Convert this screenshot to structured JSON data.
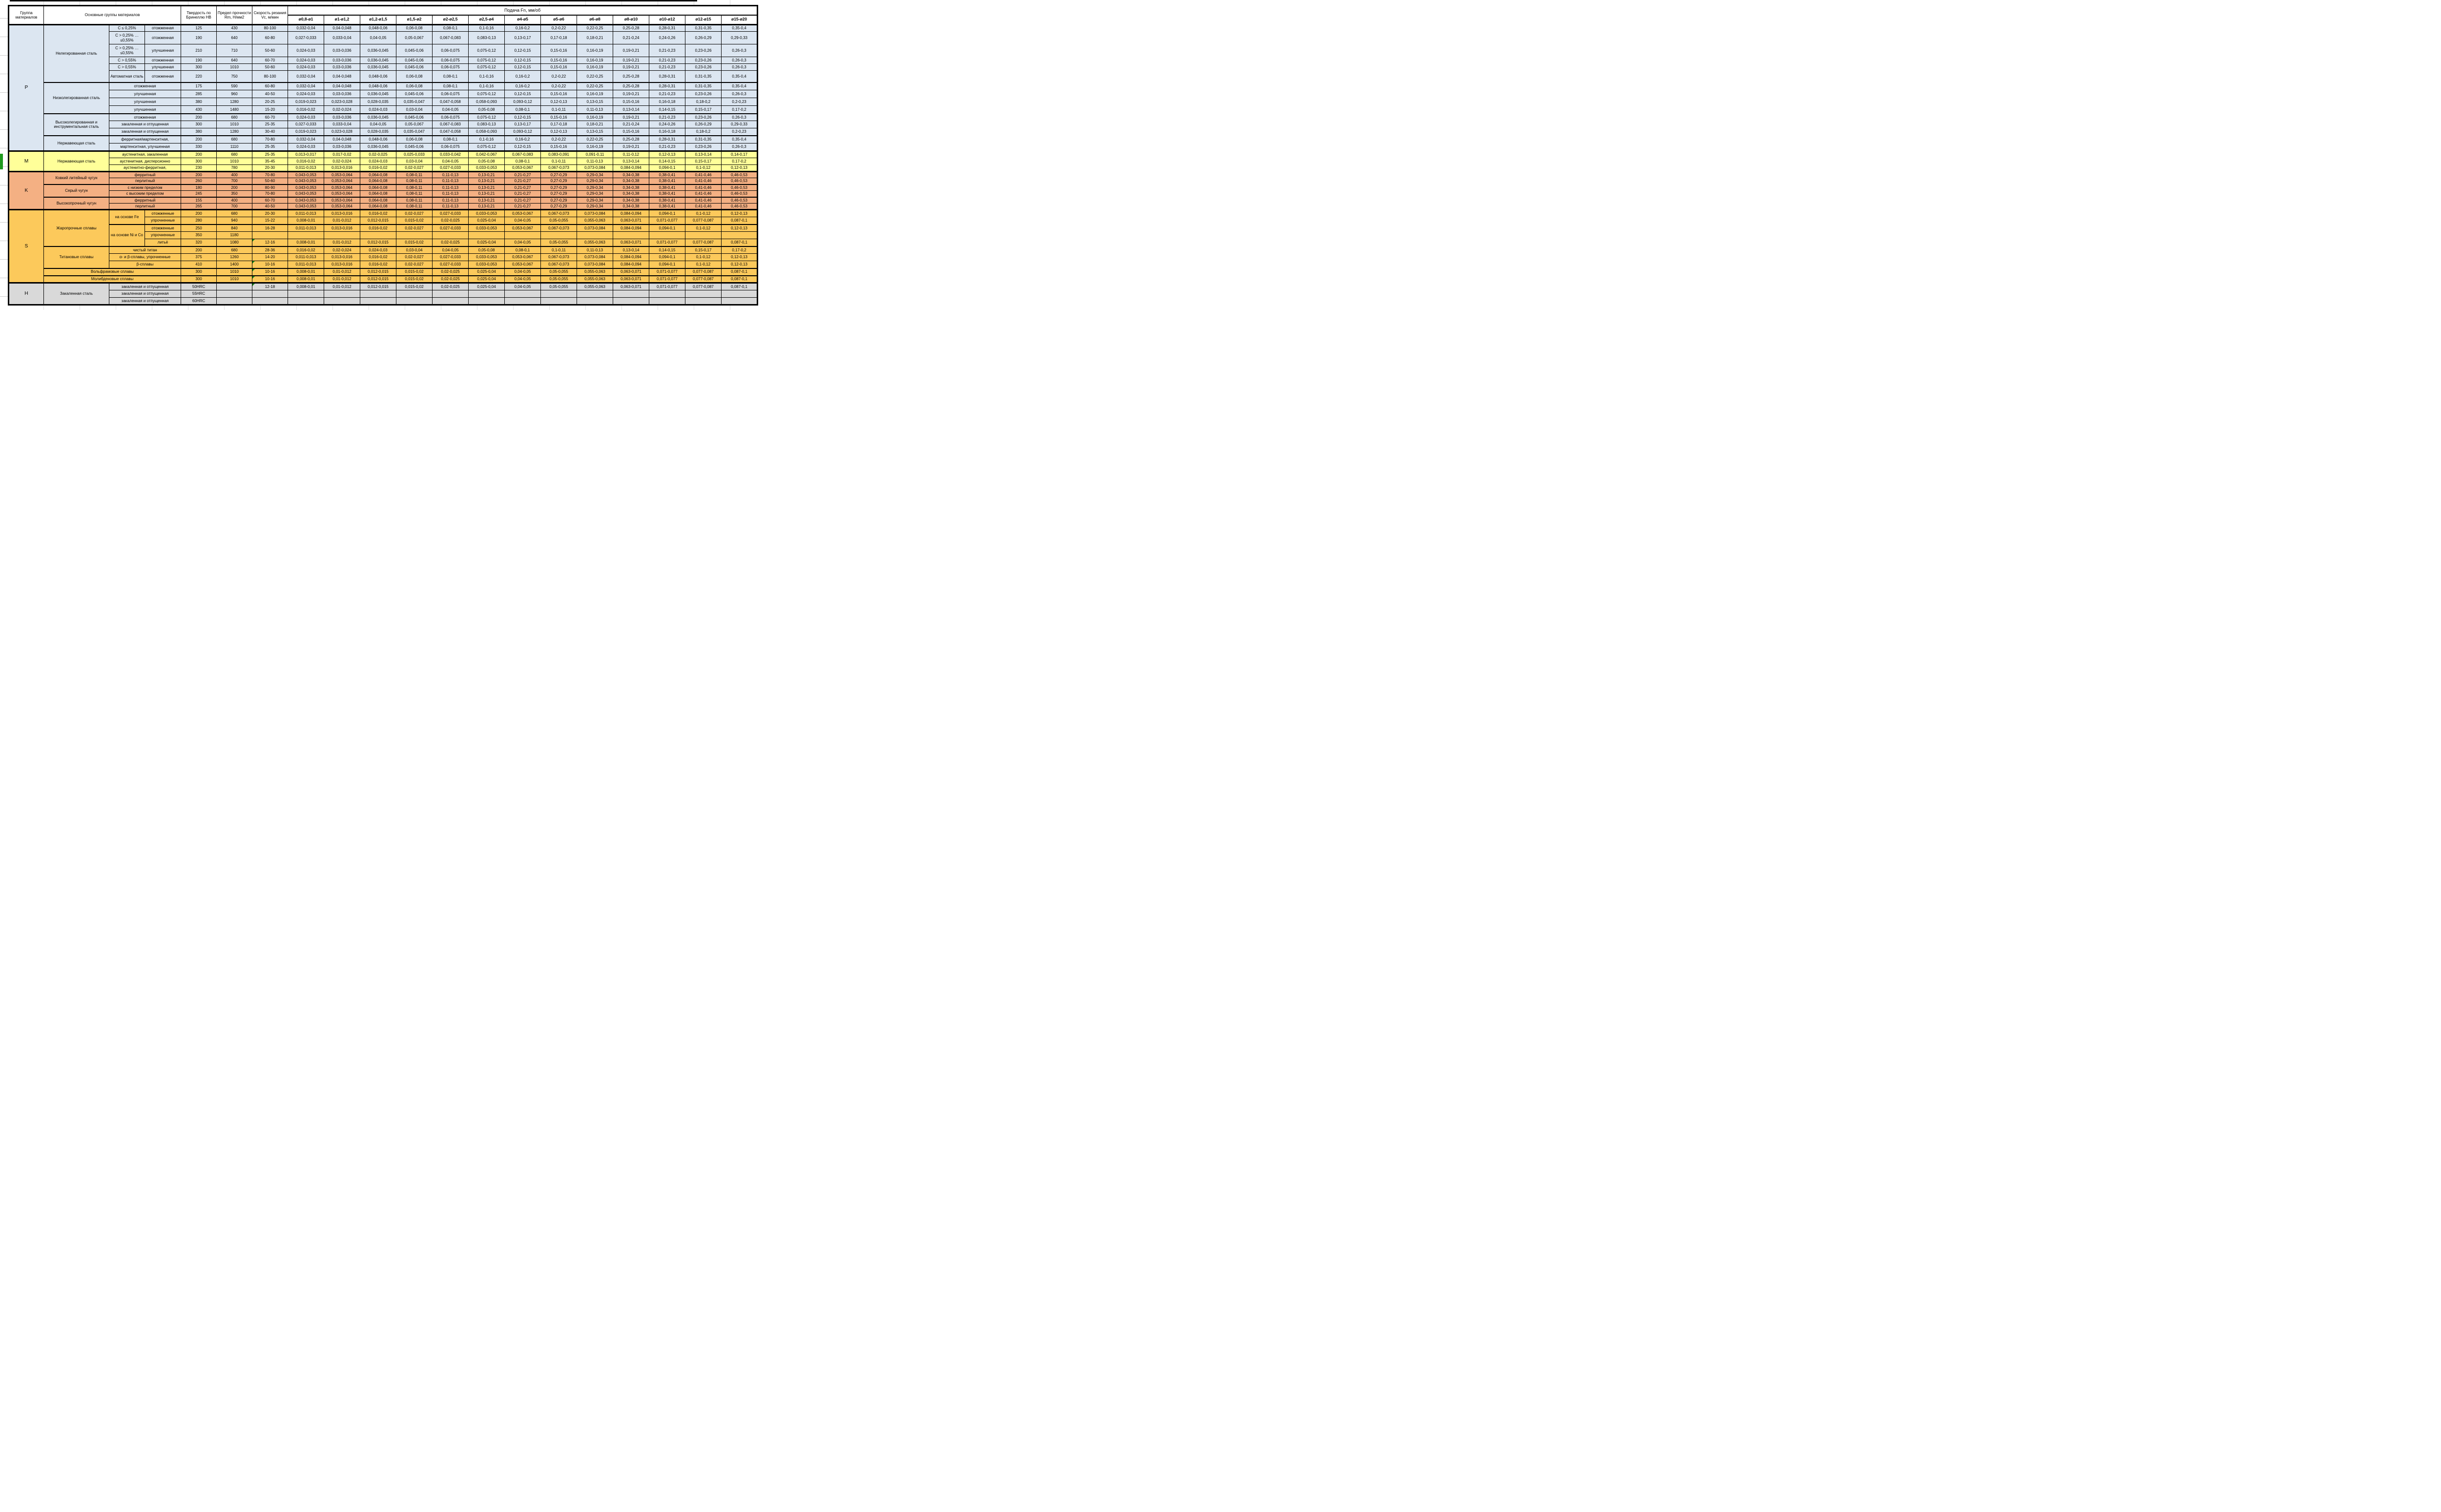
{
  "header": {
    "col_group": "Группа материалов",
    "col_materials": "Основные группы материалов",
    "col_hb": "Твердость по Бринеллю HB",
    "col_rm": "Предел прочности Rm, Н/мм2",
    "col_vc": "Скорость резания Vc, м/мин",
    "feed_title": "Подача Fn, мм/об",
    "diameters": [
      "ø0,8-ø1",
      "ø1-ø1,2",
      "ø1,2-ø1,5",
      "ø1,5-ø2",
      "ø2-ø2,5",
      "ø2,5-ø4",
      "ø4-ø5",
      "ø5-ø6",
      "ø6-ø8",
      "ø8-ø10",
      "ø10-ø12",
      "ø12-ø15",
      "ø15-ø20"
    ]
  },
  "colors": {
    "group_P": "#dce6f1",
    "group_M": "#ffff99",
    "group_K": "#f4b083",
    "group_S": "#fcc95b",
    "group_H": "#d9d9d9",
    "error_flag": "#1a8a1a"
  },
  "feed_patterns": {
    "A": [
      "0,032-0,04",
      "0,04-0,048",
      "0,048-0,06",
      "0,06-0,08",
      "0,08-0,1",
      "0,1-0,16",
      "0,16-0,2",
      "0,2-0,22",
      "0,22-0,25",
      "0,25-0,28",
      "0,28-0,31",
      "0,31-0,35",
      "0,35-0,4"
    ],
    "B": [
      "0,027-0,033",
      "0,033-0,04",
      "0,04-0,05",
      "0,05-0,067",
      "0,067-0,083",
      "0,083-0,13",
      "0,13-0,17",
      "0,17-0,18",
      "0,18-0,21",
      "0,21-0,24",
      "0,24-0,26",
      "0,26-0,29",
      "0,29-0,33"
    ],
    "C": [
      "0,024-0,03",
      "0,03-0,036",
      "0,036-0,045",
      "0,045-0,06",
      "0,06-0,075",
      "0,075-0,12",
      "0,12-0,15",
      "0,15-0,16",
      "0,16-0,19",
      "0,19-0,21",
      "0,21-0,23",
      "0,23-0,26",
      "0,26-0,3"
    ],
    "D": [
      "0,019-0,023",
      "0,023-0,028",
      "0,028-0,035",
      "0,035-0,047",
      "0,047-0,058",
      "0,058-0,093",
      "0,093-0,12",
      "0,12-0,13",
      "0,13-0,15",
      "0,15-0,16",
      "0,16-0,18",
      "0,18-0,2",
      "0,2-0,23"
    ],
    "E": [
      "0,016-0,02",
      "0,02-0,024",
      "0,024-0,03",
      "0,03-0,04",
      "0,04-0,05",
      "0,05-0,08",
      "0,08-0,1",
      "0,1-0,11",
      "0,11-0,13",
      "0,13-0,14",
      "0,14-0,15",
      "0,15-0,17",
      "0,17-0,2"
    ],
    "F": [
      "0,013-0,017",
      "0,017-0,02",
      "0,02-0,025",
      "0,025-0,033",
      "0,033-0,042",
      "0,042-0,067",
      "0,067-0,083",
      "0,083-0,091",
      "0,091-0,11",
      "0,11-0,12",
      "0,12-0,13",
      "0,13-0,14",
      "0,14-0,17"
    ],
    "G": [
      "0,011-0,013",
      "0,013-0,016",
      "0,016-0,02",
      "0,02-0,027",
      "0,027-0,033",
      "0,033-0,053",
      "0,053-0,067",
      "0,067-0,073",
      "0,073-0,084",
      "0,084-0,094",
      "0,094-0,1",
      "0,1-0,12",
      "0,12-0,13"
    ],
    "H": [
      "0,043-0,053",
      "0,053-0,064",
      "0,064-0,08",
      "0,08-0,11",
      "0,11-0,13",
      "0,13-0,21",
      "0,21-0,27",
      "0,27-0,29",
      "0,29-0,34",
      "0,34-0,38",
      "0,38-0,41",
      "0,41-0,46",
      "0,46-0,53"
    ],
    "I": [
      "0,008-0,01",
      "0,01-0,012",
      "0,012-0,015",
      "0,015-0,02",
      "0,02-0,025",
      "0,025-0,04",
      "0,04-0,05",
      "0,05-0,055",
      "0,055-0,063",
      "0,063-0,071",
      "0,071-0,077",
      "0,077-0,087",
      "0,087-0,1"
    ],
    "X": [
      "",
      "",
      "",
      "",
      "",
      "",
      "",
      "",
      "",
      "",
      "",
      "",
      ""
    ]
  },
  "rows": [
    {
      "g": "p",
      "h": 14,
      "cells": [
        {
          "t": "P",
          "rs": 15,
          "n": "group-cell",
          "cls": "glabel"
        },
        {
          "t": "Нелегированная сталь",
          "rs": 6,
          "n": "material-cell",
          "cls": "mat"
        },
        {
          "t": "C ≤ 0,25%",
          "n": "subgroup-cell",
          "cls": "sub"
        },
        {
          "t": "отожженная",
          "n": "treatment-cell"
        }
      ],
      "hb": "125",
      "rm": "430",
      "vc": "80-100",
      "vcflag": false,
      "fp": "A"
    },
    {
      "g": "p",
      "h": 26,
      "cells": [
        {
          "t": "C > 0,25% … ≤0,55%",
          "n": "subgroup-cell",
          "cls": "sub"
        },
        {
          "t": "отожженная",
          "n": "treatment-cell"
        }
      ],
      "hb": "190",
      "rm": "640",
      "vc": "60-80",
      "vcflag": false,
      "fp": "B"
    },
    {
      "g": "p",
      "h": 26,
      "cells": [
        {
          "t": "C > 0,25% … ≤0,55%",
          "n": "subgroup-cell",
          "cls": "sub"
        },
        {
          "t": "улучшенная",
          "n": "treatment-cell"
        }
      ],
      "hb": "210",
      "rm": "710",
      "vc": "50-60",
      "vcflag": false,
      "fp": "C"
    },
    {
      "g": "p",
      "h": 14,
      "cells": [
        {
          "t": "C > 0,55%",
          "n": "subgroup-cell",
          "cls": "sub"
        },
        {
          "t": "отожженная",
          "n": "treatment-cell"
        }
      ],
      "hb": "190",
      "rm": "640",
      "vc": "60-70",
      "vcflag": false,
      "fp": "C"
    },
    {
      "g": "p",
      "h": 14,
      "cells": [
        {
          "t": "C > 0,55%",
          "n": "subgroup-cell",
          "cls": "sub"
        },
        {
          "t": "улучшенная",
          "n": "treatment-cell"
        }
      ],
      "hb": "300",
      "rm": "1010",
      "vc": "50-60",
      "vcflag": false,
      "fp": "C"
    },
    {
      "g": "p",
      "h": 24,
      "cells": [
        {
          "t": "Автоматная сталь",
          "n": "subgroup-cell",
          "cls": "sub"
        },
        {
          "t": "отожженная",
          "n": "treatment-cell"
        }
      ],
      "hb": "220",
      "rm": "750",
      "vc": "80-100",
      "vcflag": false,
      "fp": "A"
    },
    {
      "g": "p",
      "h": 16,
      "b": "mg",
      "cells": [
        {
          "t": "Низколегированная сталь",
          "rs": 4,
          "n": "material-cell",
          "cls": "mat"
        },
        {
          "t": "отожженная",
          "cs": 2,
          "n": "treatment-cell"
        }
      ],
      "hb": "175",
      "rm": "590",
      "vc": "60-80",
      "vcflag": false,
      "fp": "A"
    },
    {
      "g": "p",
      "h": 16,
      "cells": [
        {
          "t": "улучшенная",
          "cs": 2,
          "n": "treatment-cell"
        }
      ],
      "hb": "285",
      "rm": "960",
      "vc": "40-50",
      "vcflag": false,
      "fp": "C"
    },
    {
      "g": "p",
      "h": 16,
      "cells": [
        {
          "t": "улучшенная",
          "cs": 2,
          "n": "treatment-cell"
        }
      ],
      "hb": "380",
      "rm": "1280",
      "vc": "20-25",
      "vcflag": false,
      "fp": "D"
    },
    {
      "g": "p",
      "h": 16,
      "cells": [
        {
          "t": "улучшенная",
          "cs": 2,
          "n": "treatment-cell"
        }
      ],
      "hb": "430",
      "rm": "1480",
      "vc": "15-20",
      "vcflag": false,
      "fp": "E"
    },
    {
      "g": "p",
      "h": 15,
      "b": "mg",
      "cells": [
        {
          "t": "Высоколегированная и инструментальная сталь",
          "rs": 3,
          "n": "material-cell",
          "cls": "mat"
        },
        {
          "t": "отожженная",
          "cs": 2,
          "n": "treatment-cell"
        }
      ],
      "hb": "200",
      "rm": "680",
      "vc": "60-70",
      "vcflag": false,
      "fp": "C"
    },
    {
      "g": "p",
      "h": 15,
      "cells": [
        {
          "t": "закаленная и отпущенная",
          "cs": 2,
          "n": "treatment-cell"
        }
      ],
      "hb": "300",
      "rm": "1010",
      "vc": "25-35",
      "vcflag": false,
      "fp": "B"
    },
    {
      "g": "p",
      "h": 15,
      "cells": [
        {
          "t": "закаленная и отпущенная",
          "cs": 2,
          "n": "treatment-cell"
        }
      ],
      "hb": "380",
      "rm": "1280",
      "vc": "30-40",
      "vcflag": false,
      "fp": "D"
    },
    {
      "g": "p",
      "h": 16,
      "b": "mg",
      "cells": [
        {
          "t": "Нержавеющая сталь",
          "rs": 2,
          "n": "material-cell",
          "cls": "mat"
        },
        {
          "t": "ферритная/мартенситная,",
          "cs": 2,
          "n": "treatment-cell"
        }
      ],
      "hb": "200",
      "rm": "680",
      "vc": "70-80",
      "vcflag": false,
      "fp": "A"
    },
    {
      "g": "p",
      "h": 16,
      "cells": [
        {
          "t": "мартенситная, улучшенная",
          "cs": 2,
          "n": "treatment-cell"
        }
      ],
      "hb": "330",
      "rm": "1110",
      "vc": "25-35",
      "vcflag": false,
      "fp": "C"
    },
    {
      "g": "m",
      "h": 14,
      "b": "sect",
      "cells": [
        {
          "t": "M",
          "rs": 3,
          "n": "group-cell",
          "cls": "glabel"
        },
        {
          "t": "Нержавеющая сталь",
          "rs": 3,
          "n": "material-cell",
          "cls": "mat"
        },
        {
          "t": "аустенитная, закаленная",
          "cs": 2,
          "n": "treatment-cell"
        }
      ],
      "hb": "200",
      "rm": "680",
      "vc": "25-35",
      "vcflag": false,
      "fp": "F"
    },
    {
      "g": "m",
      "h": 14,
      "cells": [
        {
          "t": "аустенитная, дисперсионно",
          "cs": 2,
          "n": "treatment-cell"
        }
      ],
      "hb": "300",
      "rm": "1010",
      "vc": "35-45",
      "vcflag": false,
      "fp": "E"
    },
    {
      "g": "m",
      "h": 14,
      "cells": [
        {
          "t": "аустенитно-ферритная,",
          "cs": 2,
          "n": "treatment-cell"
        }
      ],
      "hb": "230",
      "rm": "780",
      "vc": "20-30",
      "vcflag": false,
      "fp": "G"
    },
    {
      "g": "k",
      "h": 13,
      "b": "sect",
      "cells": [
        {
          "t": "K",
          "rs": 6,
          "n": "group-cell",
          "cls": "glabel"
        },
        {
          "t": "Ковкий литейный чугун",
          "rs": 2,
          "n": "material-cell",
          "cls": "mat"
        },
        {
          "t": "ферритный",
          "cs": 2,
          "n": "treatment-cell"
        }
      ],
      "hb": "200",
      "rm": "400",
      "vc": "70-80",
      "vcflag": false,
      "fp": "H"
    },
    {
      "g": "k",
      "h": 13,
      "cells": [
        {
          "t": "перлитный",
          "cs": 2,
          "n": "treatment-cell"
        }
      ],
      "hb": "260",
      "rm": "700",
      "vc": "50-60",
      "vcflag": false,
      "fp": "H"
    },
    {
      "g": "k",
      "h": 13,
      "b": "mg",
      "cells": [
        {
          "t": "Серый чугун",
          "rs": 2,
          "n": "material-cell",
          "cls": "mat"
        },
        {
          "t": "с низким пределом",
          "cs": 2,
          "n": "treatment-cell"
        }
      ],
      "hb": "180",
      "rm": "200",
      "vc": "80-90",
      "vcflag": false,
      "fp": "H"
    },
    {
      "g": "k",
      "h": 13,
      "cells": [
        {
          "t": "с высоким пределом",
          "cs": 2,
          "n": "treatment-cell"
        }
      ],
      "hb": "245",
      "rm": "350",
      "vc": "70-80",
      "vcflag": false,
      "fp": "H"
    },
    {
      "g": "k",
      "h": 13,
      "b": "mg",
      "cells": [
        {
          "t": "Высокопрочный чугун",
          "rs": 2,
          "n": "material-cell",
          "cls": "mat"
        },
        {
          "t": "ферритный",
          "cs": 2,
          "n": "treatment-cell"
        }
      ],
      "hb": "155",
      "rm": "400",
      "vc": "60-70",
      "vcflag": false,
      "fp": "H"
    },
    {
      "g": "k",
      "h": 13,
      "cells": [
        {
          "t": "перлитный",
          "cs": 2,
          "n": "treatment-cell"
        }
      ],
      "hb": "265",
      "rm": "700",
      "vc": "40-50",
      "vcflag": false,
      "fp": "H"
    },
    {
      "g": "s",
      "h": 15,
      "b": "sect",
      "cells": [
        {
          "t": "S",
          "rs": 10,
          "n": "group-cell",
          "cls": "glabel"
        },
        {
          "t": "Жаропрочные сплавы",
          "rs": 5,
          "n": "material-cell",
          "cls": "mat"
        },
        {
          "t": "на основе Fe",
          "rs": 2,
          "n": "subgroup-cell",
          "cls": "sub"
        },
        {
          "t": "отожженные",
          "n": "treatment-cell"
        }
      ],
      "hb": "200",
      "rm": "680",
      "vc": "20-30",
      "vcflag": false,
      "fp": "G"
    },
    {
      "g": "s",
      "h": 15,
      "cells": [
        {
          "t": "упрочненные",
          "n": "treatment-cell"
        }
      ],
      "hb": "280",
      "rm": "940",
      "vc": "15-22",
      "vcflag": false,
      "fp": "I"
    },
    {
      "g": "s",
      "h": 15,
      "b": "mg",
      "cells": [
        {
          "t": "на основе Ni и Co",
          "rs": 3,
          "n": "subgroup-cell",
          "cls": "sub"
        },
        {
          "t": "отожженные",
          "n": "treatment-cell"
        }
      ],
      "hb": "250",
      "rm": "840",
      "vc": "16-28",
      "vcflag": false,
      "fp": "G"
    },
    {
      "g": "s",
      "h": 15,
      "cells": [
        {
          "t": "упрочненные",
          "n": "treatment-cell"
        }
      ],
      "hb": "350",
      "rm": "1180",
      "vc": "",
      "vcflag": false,
      "fp": "X"
    },
    {
      "g": "s",
      "h": 15,
      "cells": [
        {
          "t": "литьё",
          "n": "treatment-cell"
        }
      ],
      "hb": "320",
      "rm": "1080",
      "vc": "12-16",
      "vcflag": true,
      "fp": "I"
    },
    {
      "g": "s",
      "h": 15,
      "b": "mg",
      "cells": [
        {
          "t": "Титановые сплавы",
          "rs": 3,
          "n": "material-cell",
          "cls": "mat"
        },
        {
          "t": "чистый титан",
          "cs": 2,
          "n": "treatment-cell"
        }
      ],
      "hb": "200",
      "rm": "680",
      "vc": "28-36",
      "vcflag": false,
      "fp": "E"
    },
    {
      "g": "s",
      "h": 15,
      "cells": [
        {
          "t": "α- и β-сплавы, упрочненные",
          "cs": 2,
          "n": "treatment-cell"
        }
      ],
      "hb": "375",
      "rm": "1260",
      "vc": "14-20",
      "vcflag": false,
      "fp": "G"
    },
    {
      "g": "s",
      "h": 15,
      "cells": [
        {
          "t": "β-сплавы",
          "cs": 2,
          "n": "treatment-cell"
        }
      ],
      "hb": "410",
      "rm": "1400",
      "vc": "10-16",
      "vcflag": true,
      "fp": "G"
    },
    {
      "g": "s",
      "h": 15,
      "b": "mg",
      "cells": [
        {
          "t": "Вольфрамовые сплавы",
          "cs": 3,
          "n": "material-cell",
          "cls": "mat"
        }
      ],
      "hb": "300",
      "rm": "1010",
      "vc": "10-16",
      "vcflag": true,
      "fp": "I"
    },
    {
      "g": "s",
      "h": 15,
      "b": "mg",
      "cells": [
        {
          "t": "Молибденовые сплавы",
          "cs": 3,
          "n": "material-cell",
          "cls": "mat"
        }
      ],
      "hb": "300",
      "rm": "1010",
      "vc": "10-16",
      "vcflag": true,
      "fp": "I"
    },
    {
      "g": "h",
      "h": 15,
      "b": "sect",
      "cells": [
        {
          "t": "H",
          "rs": 3,
          "n": "group-cell",
          "cls": "glabel"
        },
        {
          "t": "Закаленная сталь",
          "rs": 3,
          "n": "material-cell",
          "cls": "mat"
        },
        {
          "t": "закаленная и отпущенная",
          "cs": 2,
          "n": "treatment-cell"
        }
      ],
      "hb": "50HRC",
      "rm": "",
      "vc": "12-18",
      "vcflag": true,
      "fp": "I"
    },
    {
      "g": "h",
      "h": 15,
      "cells": [
        {
          "t": "закаленная и отпущенная",
          "cs": 2,
          "n": "treatment-cell"
        }
      ],
      "hb": "55HRC",
      "rm": "",
      "vc": "",
      "vcflag": false,
      "fp": "X"
    },
    {
      "g": "h",
      "h": 15,
      "cells": [
        {
          "t": "закаленная и отпущенная",
          "cs": 2,
          "n": "treatment-cell"
        }
      ],
      "hb": "60HRC",
      "rm": "",
      "vc": "",
      "vcflag": false,
      "fp": "X"
    }
  ]
}
